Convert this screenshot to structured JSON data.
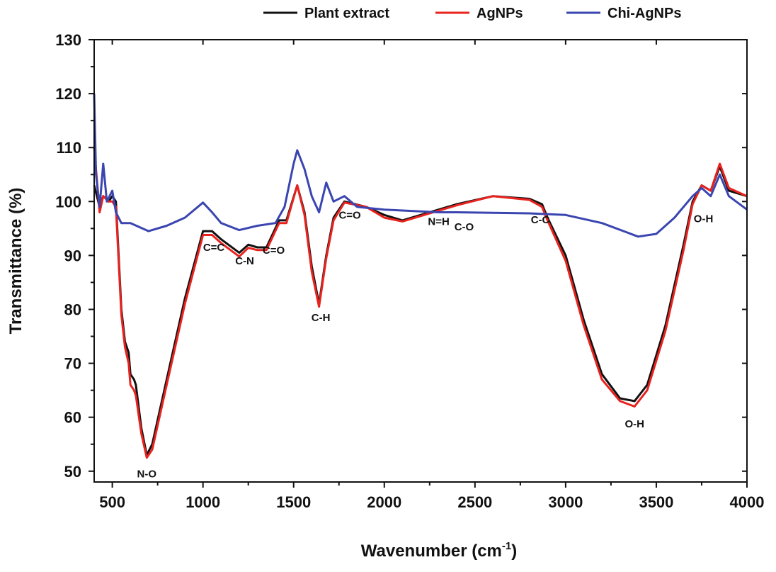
{
  "chart_data": {
    "type": "line",
    "title": "",
    "xlabel": "Wavenumber (cm",
    "xlabel_sup": "-1",
    "xlabel_close": ")",
    "ylabel": "Transmittance (%)",
    "xlim": [
      400,
      4000
    ],
    "ylim": [
      48,
      130
    ],
    "xticks": [
      500,
      1000,
      1500,
      2000,
      2500,
      3000,
      3500,
      4000
    ],
    "yticks": [
      50,
      60,
      70,
      80,
      90,
      100,
      110,
      120,
      130
    ],
    "grid": false,
    "legend_placement": "top",
    "series": [
      {
        "name": "Plant extract",
        "color": "#111111",
        "x": [
          400,
          430,
          450,
          480,
          500,
          520,
          550,
          570,
          590,
          600,
          620,
          630,
          660,
          690,
          720,
          800,
          900,
          1000,
          1050,
          1100,
          1200,
          1250,
          1300,
          1350,
          1420,
          1460,
          1520,
          1560,
          1600,
          1640,
          1680,
          1720,
          1780,
          1900,
          2000,
          2100,
          2200,
          2300,
          2400,
          2600,
          2800,
          2870,
          2900,
          3000,
          3100,
          3200,
          3300,
          3380,
          3450,
          3550,
          3650,
          3700,
          3750,
          3800,
          3850,
          3900,
          4000
        ],
        "y": [
          103,
          99,
          101,
          100,
          101,
          100,
          80,
          74,
          72,
          68,
          67,
          66,
          58,
          53,
          55,
          67,
          82,
          94.5,
          94.5,
          93,
          90.5,
          92,
          91.5,
          91.5,
          96.5,
          96.5,
          103,
          98,
          88,
          81,
          90,
          97,
          100,
          99,
          97.5,
          96.5,
          97.5,
          98.5,
          99.5,
          101,
          100.5,
          99.5,
          97,
          90,
          78,
          68,
          63.5,
          63,
          66,
          77,
          92,
          100,
          103,
          102,
          106.5,
          102,
          101
        ]
      },
      {
        "name": "AgNPs",
        "color": "#e8231f",
        "x": [
          400,
          430,
          450,
          480,
          500,
          520,
          550,
          570,
          590,
          600,
          620,
          630,
          660,
          690,
          720,
          800,
          900,
          1000,
          1050,
          1100,
          1200,
          1250,
          1300,
          1350,
          1420,
          1460,
          1520,
          1560,
          1600,
          1640,
          1680,
          1720,
          1780,
          1900,
          2000,
          2100,
          2200,
          2300,
          2400,
          2600,
          2800,
          2870,
          2900,
          3000,
          3100,
          3200,
          3300,
          3380,
          3450,
          3550,
          3650,
          3700,
          3750,
          3800,
          3850,
          3900,
          4000
        ],
        "y": [
          110,
          98,
          101,
          100,
          100,
          99,
          79,
          73,
          70,
          66,
          65,
          64,
          57,
          52.5,
          54,
          66,
          81,
          93.8,
          93.8,
          92.3,
          89.8,
          91.4,
          91,
          91,
          96,
          96,
          103,
          97.5,
          87,
          80.5,
          89.5,
          96.5,
          99.8,
          99,
          97,
          96.3,
          97.3,
          98.3,
          99.3,
          101,
          100.3,
          99,
          96.5,
          89,
          77,
          67,
          63,
          62,
          65,
          76,
          91,
          99.5,
          103,
          102,
          107,
          102.5,
          101
        ]
      },
      {
        "name": "Chi-AgNPs",
        "color": "#3a45b0",
        "x": [
          400,
          410,
          430,
          450,
          470,
          500,
          520,
          550,
          600,
          700,
          800,
          900,
          1000,
          1050,
          1100,
          1200,
          1300,
          1400,
          1450,
          1500,
          1520,
          1560,
          1600,
          1640,
          1680,
          1720,
          1780,
          1850,
          2000,
          2300,
          2400,
          2800,
          3000,
          3200,
          3400,
          3500,
          3600,
          3700,
          3750,
          3800,
          3850,
          3900,
          4000
        ],
        "y": [
          120,
          105,
          99,
          107,
          100,
          102,
          98,
          96,
          96,
          94.5,
          95.5,
          97,
          99.8,
          98,
          96,
          94.7,
          95.5,
          96,
          99,
          107,
          109.5,
          106,
          101,
          98,
          103.5,
          100,
          101,
          99,
          98.5,
          98,
          98,
          97.8,
          97.5,
          96,
          93.5,
          94,
          97,
          101,
          102.5,
          101,
          105,
          101,
          98.5
        ]
      }
    ],
    "annotations": [
      {
        "text": "N-O",
        "x": 690,
        "y": 49.5
      },
      {
        "text": "C=C",
        "x": 1060,
        "y": 91.5
      },
      {
        "text": "C-N",
        "x": 1230,
        "y": 89
      },
      {
        "text": "C=O",
        "x": 1390,
        "y": 91
      },
      {
        "text": "C-H",
        "x": 1650,
        "y": 78.5
      },
      {
        "text": "C=O",
        "x": 1810,
        "y": 97.5
      },
      {
        "text": "N=H",
        "x": 2300,
        "y": 96.3
      },
      {
        "text": "C-O",
        "x": 2440,
        "y": 95.3
      },
      {
        "text": "C-C",
        "x": 2860,
        "y": 96.6
      },
      {
        "text": "O-H",
        "x": 3380,
        "y": 58.8
      },
      {
        "text": "O-H",
        "x": 3760,
        "y": 96.8
      }
    ]
  }
}
